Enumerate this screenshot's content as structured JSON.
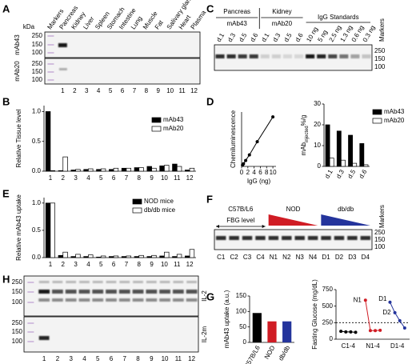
{
  "panel_labels": [
    "A",
    "B",
    "C",
    "D",
    "E",
    "F",
    "G",
    "H"
  ],
  "blots": {
    "A": {
      "unit": "kDa",
      "lanes": [
        "Markers",
        "Pancreas",
        "Kidney",
        "Liver",
        "Spleen",
        "Stomach",
        "Intestine",
        "Lung",
        "Muscle",
        "Fat",
        "Salivary gland",
        "Heart",
        "Plasma"
      ],
      "rows": [
        "mAb43",
        "mAb20"
      ],
      "markers": [
        250,
        150,
        100
      ],
      "lane_numbers": [
        1,
        2,
        3,
        4,
        5,
        6,
        7,
        8,
        9,
        10,
        11,
        12
      ]
    },
    "C": {
      "groups": [
        "Pancreas",
        "Kidney",
        "IgG Standards"
      ],
      "antibodies": [
        "mAb43",
        "mAb20"
      ],
      "lanes": [
        "d.1",
        "d.3",
        "d.5",
        "d.6",
        "d.1",
        "d.3",
        "d.5",
        "d.6",
        "10 ng",
        "5 ng",
        "2.5 ng",
        "1.3 ng",
        "0.6 ng",
        "0.3 ng"
      ],
      "markers_label": "Markers",
      "markers": [
        250,
        150,
        100
      ]
    },
    "F": {
      "groups": [
        "C57B/L6",
        "NOD",
        "db/db"
      ],
      "sublabel": "FBG level",
      "group_colors": [
        "#000000",
        "#d01c24",
        "#24349c"
      ],
      "lanes": [
        "C1",
        "C2",
        "C3",
        "C4",
        "N1",
        "N2",
        "N3",
        "N4",
        "D1",
        "D2",
        "D3",
        "D4"
      ],
      "markers_label": "Markers",
      "markers": [
        250,
        150,
        100
      ]
    },
    "H": {
      "rows": [
        "IL-2",
        "IL-2m"
      ],
      "markers": [
        250,
        150,
        100
      ],
      "lane_numbers": [
        1,
        2,
        3,
        4,
        5,
        6,
        7,
        8,
        9,
        10,
        11,
        12
      ]
    }
  },
  "chart_data": [
    {
      "type": "bar",
      "y_label": "Relative Tissue level",
      "categories": [
        "1",
        "2",
        "3",
        "4",
        "5",
        "6",
        "7",
        "8",
        "9",
        "10",
        "11",
        "12"
      ],
      "series": [
        {
          "name": "mAb43",
          "color": "#000000",
          "values": [
            1.0,
            0.01,
            0.02,
            0.03,
            0.03,
            0.03,
            0.05,
            0.06,
            0.08,
            0.09,
            0.12,
            0.02
          ]
        },
        {
          "name": "mAb20",
          "color": "#ffffff",
          "values": [
            0.01,
            0.24,
            0.03,
            0.04,
            0.04,
            0.05,
            0.05,
            0.06,
            0.05,
            0.1,
            0.08,
            0.05
          ]
        }
      ],
      "ylim": [
        0,
        1.1
      ],
      "yticks": [
        {
          "value": 0,
          "label": "0.0"
        },
        {
          "value": 0.5,
          "label": "0.5"
        },
        {
          "value": 1,
          "label": "1.0"
        }
      ],
      "legend": "upper right"
    },
    {
      "type": "line",
      "x_label": "IgG (ng)",
      "y_label": "Chemiluminescence",
      "x": [
        0.3,
        0.6,
        1.3,
        2.5,
        5,
        10
      ],
      "values": [
        4,
        8,
        18,
        35,
        75,
        150
      ],
      "color": "#000000",
      "xlim": [
        0,
        11
      ],
      "xticks": [
        0,
        2,
        4,
        6,
        8,
        10
      ],
      "ylim": [
        0,
        165
      ]
    },
    {
      "type": "bar",
      "y_label": {
        "main": "mAb",
        "sub": "injected",
        "tail": "%/g"
      },
      "categories": [
        "d.1",
        "d.3",
        "d.5",
        "d.6"
      ],
      "series": [
        {
          "name": "mAb43",
          "color": "#000000",
          "values": [
            20,
            17,
            15,
            11
          ]
        },
        {
          "name": "mAb20",
          "color": "#ffffff",
          "values": [
            4,
            3,
            1.5,
            0.8
          ]
        }
      ],
      "ylim": [
        0,
        30
      ],
      "yticks": [
        0,
        10,
        20,
        30
      ],
      "legend": "right"
    },
    {
      "type": "bar",
      "y_label": "Relative mAb43 uptake",
      "categories": [
        "1",
        "2",
        "3",
        "4",
        "5",
        "6",
        "7",
        "8",
        "9",
        "10",
        "11",
        "12"
      ],
      "series": [
        {
          "name": "NOD mice",
          "color": "#000000",
          "values": [
            1.0,
            0.04,
            0.02,
            0.02,
            0.01,
            0.02,
            0.02,
            0.02,
            0.02,
            0.03,
            0.02,
            0.03
          ]
        },
        {
          "name": "db/db mice",
          "color": "#ffffff",
          "values": [
            1.0,
            0.1,
            0.06,
            0.05,
            0.03,
            0.03,
            0.03,
            0.04,
            0.04,
            0.1,
            0.06,
            0.15
          ]
        }
      ],
      "ylim": [
        0,
        1.1
      ],
      "yticks": [
        {
          "value": 0,
          "label": "0.0"
        },
        {
          "value": 0.5,
          "label": "0.5"
        },
        {
          "value": 1,
          "label": "1.0"
        }
      ],
      "legend": "upper right"
    },
    {
      "type": "bar",
      "y_label": "mAb43 uptake (a.u.)",
      "categories": [
        "C57B/L6",
        "NOD",
        "db/db"
      ],
      "values": [
        95,
        68,
        68
      ],
      "colors": [
        "#000000",
        "#d01c24",
        "#24349c"
      ],
      "ylim": [
        0,
        150
      ],
      "yticks": [
        0,
        50,
        100,
        150
      ]
    },
    {
      "type": "line",
      "y_label": "Fasting Glucose (mg/dL)",
      "series": [
        {
          "name": "C1-4",
          "color": "#000000",
          "x": [
            1,
            2,
            3,
            4
          ],
          "values": [
            120,
            110,
            110,
            105
          ]
        },
        {
          "name": "N1-4",
          "color": "#d01c24",
          "x": [
            6,
            7,
            8,
            9
          ],
          "values": [
            590,
            130,
            130,
            135
          ]
        },
        {
          "name": "D1-4",
          "color": "#24349c",
          "x": [
            11,
            12,
            13,
            14
          ],
          "values": [
            560,
            400,
            280,
            170
          ]
        }
      ],
      "xlim": [
        0,
        15
      ],
      "ylim": [
        0,
        750
      ],
      "yticks": [
        0,
        250,
        500,
        750
      ],
      "reference_line": 250,
      "annotations": [
        "N1",
        "D1",
        "D2"
      ]
    }
  ]
}
